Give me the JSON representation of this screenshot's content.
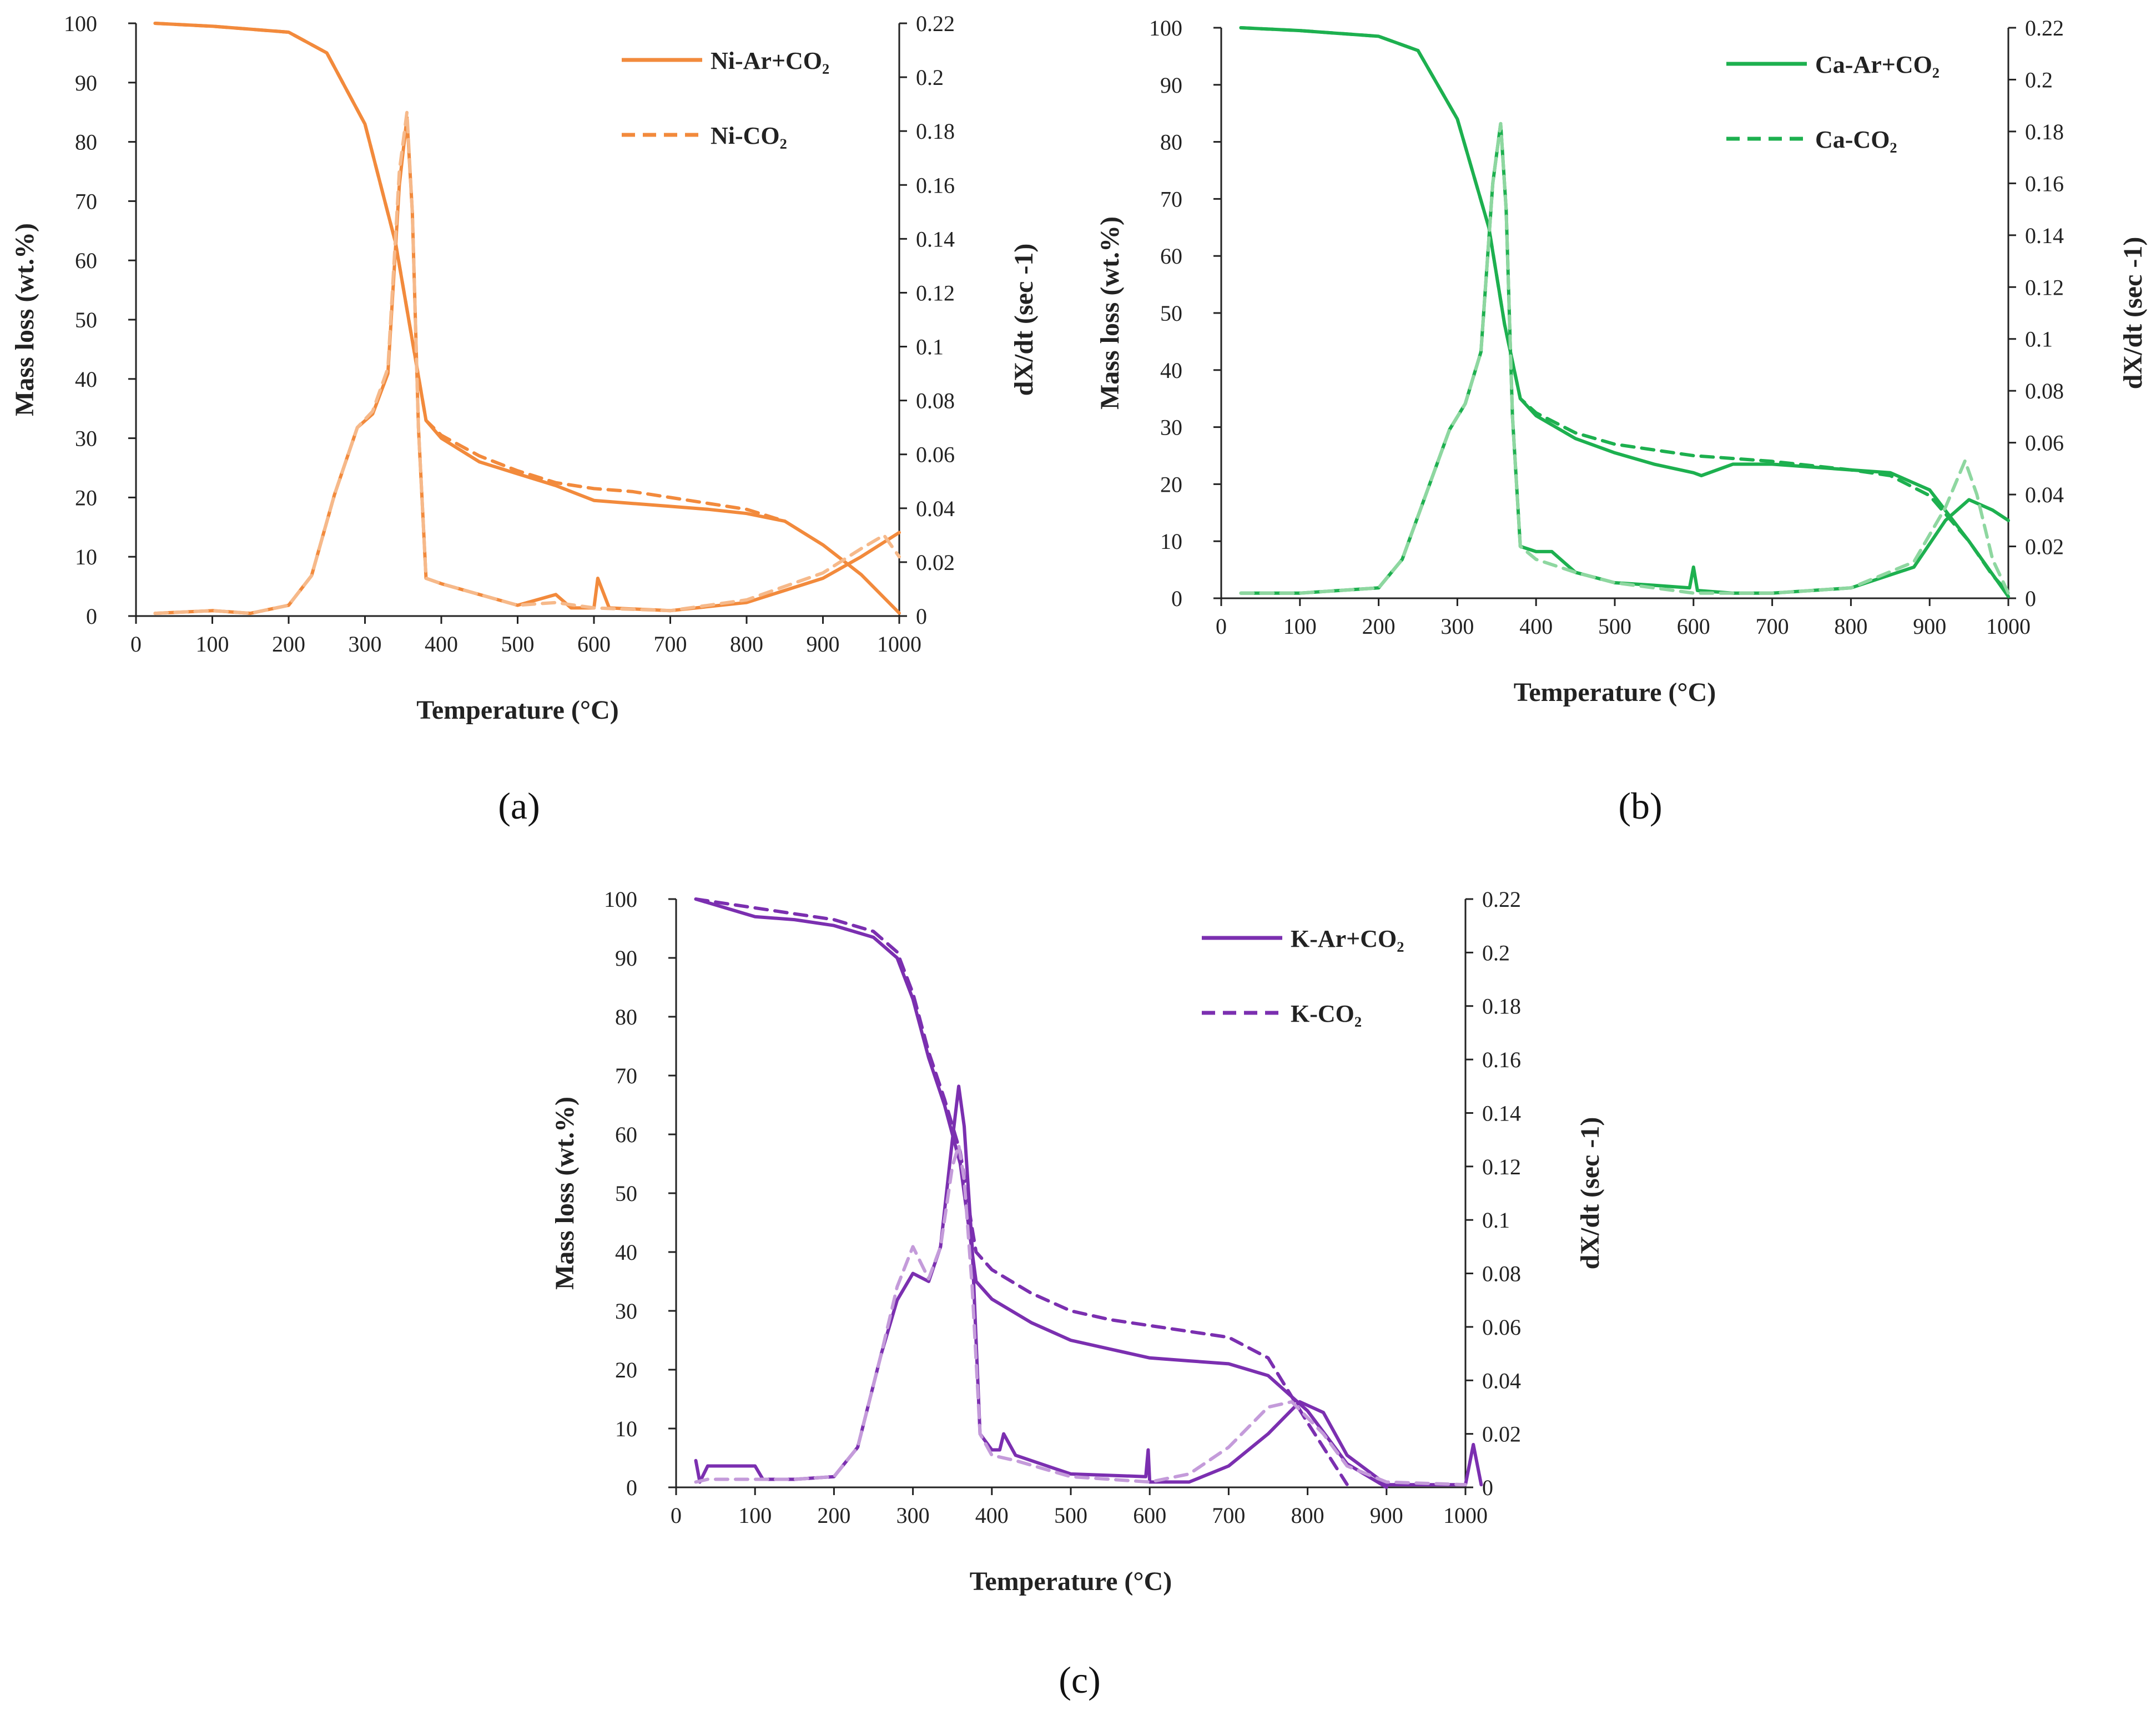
{
  "figure": {
    "labels": {
      "a": "(a)",
      "b": "(b)",
      "c": "(c)"
    }
  },
  "chart_data": [
    {
      "id": "a",
      "type": "line",
      "panel_label": "(a)",
      "xlabel": "Temperature (°C)",
      "ylabel": "Mass loss (wt.%)",
      "y2label": "dX/dt (sec -1)",
      "xlim": [
        0,
        1000
      ],
      "ylim": [
        0,
        100
      ],
      "y2lim": [
        0,
        0.22
      ],
      "xticks": [
        "0",
        "100",
        "200",
        "300",
        "400",
        "500",
        "600",
        "700",
        "800",
        "900",
        "1000"
      ],
      "yticks": [
        "0",
        "10",
        "20",
        "30",
        "40",
        "50",
        "60",
        "70",
        "80",
        "90",
        "100"
      ],
      "y2ticks": [
        "0",
        "0.02",
        "0.04",
        "0.06",
        "0.08",
        "0.1",
        "0.12",
        "0.14",
        "0.16",
        "0.18",
        "0.2",
        "0.22"
      ],
      "color": "#F28A3C",
      "light_color": "#F6B98A",
      "legend": [
        {
          "name": "Ni-Ar+CO₂",
          "style": "solid"
        },
        {
          "name": "Ni-CO₂",
          "style": "dashed"
        }
      ],
      "series": [
        {
          "name": "Ni-Ar+CO₂",
          "axis": "left",
          "style": "solid",
          "x": [
            25,
            100,
            200,
            250,
            300,
            340,
            360,
            380,
            400,
            450,
            500,
            550,
            600,
            650,
            700,
            750,
            800,
            850,
            900,
            950,
            1000
          ],
          "values": [
            100,
            99.5,
            98.5,
            95,
            83,
            63,
            48,
            33,
            30,
            26,
            24,
            22,
            19.5,
            19,
            18.5,
            18,
            17.3,
            16,
            12,
            7,
            0.5
          ]
        },
        {
          "name": "Ni-CO₂",
          "axis": "left",
          "style": "dashed",
          "x": [
            25,
            100,
            200,
            250,
            300,
            340,
            360,
            380,
            400,
            450,
            500,
            550,
            600,
            650,
            700,
            750,
            800,
            850
          ],
          "values": [
            100,
            99.5,
            98.5,
            95,
            83,
            63,
            48,
            33,
            30.5,
            27,
            24.5,
            22.5,
            21.5,
            21,
            20,
            19,
            18,
            16
          ]
        },
        {
          "name": "Ni-Ar+CO₂ dX/dt",
          "axis": "right",
          "style": "solid",
          "x": [
            25,
            100,
            150,
            200,
            230,
            260,
            290,
            310,
            330,
            345,
            355,
            362,
            370,
            380,
            400,
            450,
            500,
            550,
            570,
            600,
            605,
            620,
            700,
            800,
            900,
            950,
            1000
          ],
          "values": [
            0.001,
            0.002,
            0.001,
            0.004,
            0.015,
            0.045,
            0.07,
            0.075,
            0.09,
            0.16,
            0.185,
            0.15,
            0.07,
            0.014,
            0.012,
            0.008,
            0.004,
            0.008,
            0.003,
            0.003,
            0.014,
            0.003,
            0.002,
            0.005,
            0.014,
            0.022,
            0.031
          ]
        },
        {
          "name": "Ni-CO₂ dX/dt",
          "axis": "right",
          "style": "dashed",
          "x": [
            25,
            100,
            150,
            200,
            230,
            260,
            290,
            310,
            330,
            345,
            355,
            362,
            370,
            380,
            400,
            450,
            500,
            550,
            600,
            700,
            800,
            900,
            950,
            980,
            1000
          ],
          "values": [
            0.001,
            0.002,
            0.001,
            0.004,
            0.015,
            0.045,
            0.07,
            0.076,
            0.092,
            0.165,
            0.187,
            0.15,
            0.07,
            0.014,
            0.012,
            0.008,
            0.004,
            0.005,
            0.003,
            0.002,
            0.006,
            0.016,
            0.025,
            0.03,
            0.022
          ]
        }
      ]
    },
    {
      "id": "b",
      "type": "line",
      "panel_label": "(b)",
      "xlabel": "Temperature (°C)",
      "ylabel": "Mass loss (wt.%)",
      "y2label": "dX/dt (sec -1)",
      "xlim": [
        0,
        1000
      ],
      "ylim": [
        0,
        100
      ],
      "y2lim": [
        0,
        0.22
      ],
      "xticks": [
        "0",
        "100",
        "200",
        "300",
        "400",
        "500",
        "600",
        "700",
        "800",
        "900",
        "1000"
      ],
      "yticks": [
        "0",
        "10",
        "20",
        "30",
        "40",
        "50",
        "60",
        "70",
        "80",
        "90",
        "100"
      ],
      "y2ticks": [
        "0",
        "0.02",
        "0.04",
        "0.06",
        "0.08",
        "0.1",
        "0.12",
        "0.14",
        "0.16",
        "0.18",
        "0.2",
        "0.22"
      ],
      "color": "#1DB04F",
      "light_color": "#8ED7A0",
      "legend": [
        {
          "name": "Ca-Ar+CO₂",
          "style": "solid"
        },
        {
          "name": "Ca-CO₂",
          "style": "dashed"
        }
      ],
      "series": [
        {
          "name": "Ca-Ar+CO₂",
          "axis": "left",
          "style": "solid",
          "x": [
            25,
            100,
            200,
            250,
            300,
            340,
            360,
            380,
            400,
            450,
            500,
            550,
            600,
            610,
            650,
            700,
            800,
            850,
            900,
            950,
            1000
          ],
          "values": [
            100,
            99.5,
            98.5,
            96,
            84,
            65,
            48,
            35,
            32,
            28,
            25.5,
            23.5,
            22,
            21.5,
            23.5,
            23.5,
            22.5,
            22,
            19,
            10,
            0.3
          ]
        },
        {
          "name": "Ca-CO₂",
          "axis": "left",
          "style": "dashed",
          "x": [
            25,
            100,
            200,
            250,
            300,
            340,
            360,
            380,
            400,
            450,
            500,
            550,
            600,
            650,
            700,
            800,
            850,
            900,
            950,
            980,
            1000
          ],
          "values": [
            100,
            99.5,
            98.5,
            96,
            84,
            65,
            48,
            35,
            32.5,
            29,
            27,
            26,
            25,
            24.5,
            24,
            22.5,
            21.5,
            18,
            10,
            4,
            1
          ]
        },
        {
          "name": "Ca-Ar+CO₂ dX/dt",
          "axis": "right",
          "style": "solid",
          "x": [
            25,
            100,
            200,
            230,
            260,
            290,
            310,
            330,
            345,
            355,
            362,
            370,
            380,
            400,
            420,
            450,
            500,
            550,
            595,
            600,
            605,
            650,
            700,
            800,
            880,
            920,
            950,
            980,
            1000
          ],
          "values": [
            0.002,
            0.002,
            0.004,
            0.015,
            0.04,
            0.065,
            0.075,
            0.095,
            0.16,
            0.183,
            0.15,
            0.07,
            0.02,
            0.018,
            0.018,
            0.01,
            0.006,
            0.005,
            0.004,
            0.012,
            0.003,
            0.002,
            0.002,
            0.004,
            0.012,
            0.03,
            0.038,
            0.034,
            0.03
          ]
        },
        {
          "name": "Ca-CO₂ dX/dt",
          "axis": "right",
          "style": "dashed",
          "x": [
            25,
            100,
            200,
            230,
            260,
            290,
            310,
            330,
            345,
            355,
            362,
            370,
            380,
            400,
            450,
            500,
            550,
            600,
            700,
            800,
            880,
            920,
            945,
            960,
            980,
            1000
          ],
          "values": [
            0.002,
            0.002,
            0.004,
            0.015,
            0.04,
            0.065,
            0.075,
            0.095,
            0.16,
            0.183,
            0.15,
            0.07,
            0.02,
            0.015,
            0.01,
            0.006,
            0.004,
            0.002,
            0.002,
            0.004,
            0.014,
            0.035,
            0.053,
            0.04,
            0.015,
            0.002
          ]
        }
      ]
    },
    {
      "id": "c",
      "type": "line",
      "panel_label": "(c)",
      "xlabel": "Temperature (°C)",
      "ylabel": "Mass loss (wt.%)",
      "y2label": "dX/dt (sec -1)",
      "xlim": [
        0,
        1000
      ],
      "ylim": [
        0,
        100
      ],
      "y2lim": [
        0,
        0.22
      ],
      "xticks": [
        "0",
        "100",
        "200",
        "300",
        "400",
        "500",
        "600",
        "700",
        "800",
        "900",
        "1000"
      ],
      "yticks": [
        "0",
        "10",
        "20",
        "30",
        "40",
        "50",
        "60",
        "70",
        "80",
        "90",
        "100"
      ],
      "y2ticks": [
        "0",
        "0.02",
        "0.04",
        "0.06",
        "0.08",
        "0.1",
        "0.12",
        "0.14",
        "0.16",
        "0.18",
        "0.2",
        "0.22"
      ],
      "color": "#7B2FB0",
      "light_color": "#C49BDA",
      "legend": [
        {
          "name": "K-Ar+CO₂",
          "style": "solid"
        },
        {
          "name": "K-CO₂",
          "style": "dashed"
        }
      ],
      "series": [
        {
          "name": "K-Ar+CO₂",
          "axis": "left",
          "style": "solid",
          "x": [
            25,
            100,
            150,
            200,
            250,
            280,
            300,
            320,
            340,
            360,
            375,
            380,
            400,
            450,
            500,
            550,
            600,
            650,
            700,
            750,
            800,
            850,
            900
          ],
          "values": [
            100,
            97,
            96.5,
            95.5,
            93.5,
            90,
            83,
            73,
            65,
            55,
            40,
            35,
            32,
            28,
            25,
            23.5,
            22,
            21.5,
            21,
            19,
            13,
            4,
            0
          ]
        },
        {
          "name": "K-CO₂",
          "axis": "left",
          "style": "dashed",
          "x": [
            25,
            100,
            150,
            200,
            250,
            280,
            300,
            320,
            340,
            360,
            375,
            380,
            400,
            450,
            500,
            550,
            600,
            650,
            700,
            750,
            800,
            850
          ],
          "values": [
            100,
            98.5,
            97.5,
            96.5,
            94.5,
            91,
            84,
            74,
            66,
            57,
            44,
            40,
            37,
            33,
            30,
            28.5,
            27.5,
            26.5,
            25.5,
            22,
            11,
            0.5
          ]
        },
        {
          "name": "K-Ar+CO₂ dX/dt",
          "axis": "right",
          "style": "solid",
          "x": [
            25,
            30,
            40,
            100,
            110,
            150,
            200,
            230,
            260,
            280,
            300,
            320,
            335,
            350,
            358,
            365,
            375,
            385,
            400,
            410,
            415,
            430,
            500,
            595,
            598,
            600,
            650,
            700,
            750,
            790,
            820,
            850,
            900,
            1000,
            1010,
            1020
          ],
          "values": [
            0.01,
            0.002,
            0.008,
            0.008,
            0.003,
            0.003,
            0.004,
            0.015,
            0.05,
            0.07,
            0.08,
            0.077,
            0.09,
            0.13,
            0.15,
            0.135,
            0.09,
            0.02,
            0.014,
            0.014,
            0.02,
            0.012,
            0.005,
            0.004,
            0.014,
            0.002,
            0.002,
            0.008,
            0.02,
            0.032,
            0.028,
            0.012,
            0.001,
            0.001,
            0.016,
            0.001
          ]
        },
        {
          "name": "K-CO₂ dX/dt",
          "axis": "right",
          "style": "dashed",
          "x": [
            25,
            40,
            100,
            150,
            200,
            230,
            260,
            280,
            300,
            320,
            335,
            350,
            358,
            365,
            375,
            385,
            400,
            430,
            500,
            600,
            650,
            700,
            750,
            780,
            820,
            850,
            900,
            1000
          ],
          "values": [
            0.002,
            0.003,
            0.003,
            0.003,
            0.004,
            0.015,
            0.05,
            0.075,
            0.09,
            0.078,
            0.09,
            0.12,
            0.128,
            0.115,
            0.075,
            0.02,
            0.012,
            0.01,
            0.004,
            0.002,
            0.005,
            0.015,
            0.03,
            0.032,
            0.02,
            0.008,
            0.002,
            0.001
          ]
        }
      ]
    }
  ]
}
